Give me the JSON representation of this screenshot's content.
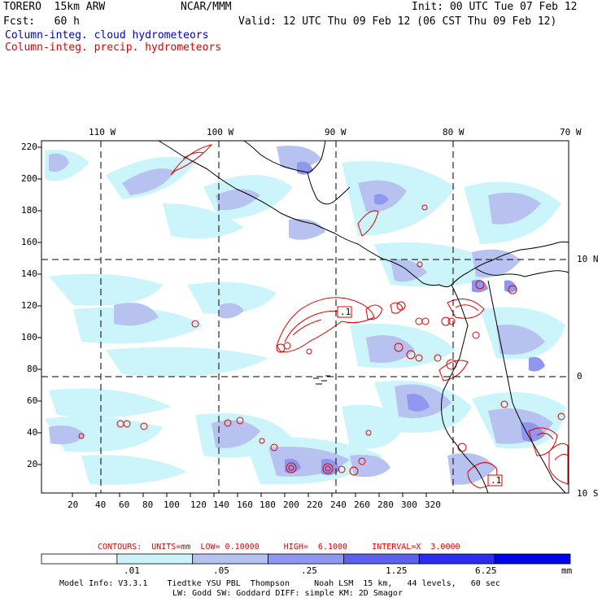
{
  "header": {
    "model": "TORERO  15km ARW",
    "org": "NCAR/MMM",
    "init": "Init: 00 UTC Tue 07 Feb 12",
    "fcst": "Fcst:   60 h",
    "valid": "Valid: 12 UTC Thu 09 Feb 12 (06 CST Thu 09 Feb 12)",
    "field_cloud": "Column-integ. cloud hydrometeors",
    "field_precip": "Column-integ. precip. hydrometeors"
  },
  "map": {
    "lon_labels": [
      "110 W",
      "100 W",
      "90 W",
      "80 W",
      "70 W"
    ],
    "lat_labels": [
      "10 N",
      "0",
      "10 S"
    ],
    "y_ticks": [
      "220",
      "200",
      "180",
      "160",
      "140",
      "120",
      "100",
      "80",
      "60",
      "40",
      "20"
    ],
    "x_ticks": [
      "20",
      "40",
      "60",
      "80",
      "100",
      "120",
      "140",
      "160",
      "180",
      "200",
      "220",
      "240",
      "260",
      "280",
      "300",
      "320"
    ],
    "contour_label": ".1"
  },
  "contours": {
    "summary": "CONTOURS:  UNITS=mm  LOW= 0.10000     HIGH=  6.1000     INTERVAL=X  3.0000"
  },
  "legend": {
    "colors": [
      "#ffffff",
      "#ccf5fb",
      "#b8c2f0",
      "#8f97ee",
      "#5d60ec",
      "#2c2cf0",
      "#0000ee"
    ],
    "labels": [
      ".01",
      ".05",
      ".25",
      "1.25",
      "6.25"
    ],
    "unit": "mm"
  },
  "footer": {
    "line1": "Model Info: V3.3.1    Tiedtke YSU PBL  Thompson     Noah LSM  15 km,   44 levels,   60 sec",
    "line2": "LW: Godd SW: Goddard DIFF: simple KM: 2D Smagor"
  }
}
